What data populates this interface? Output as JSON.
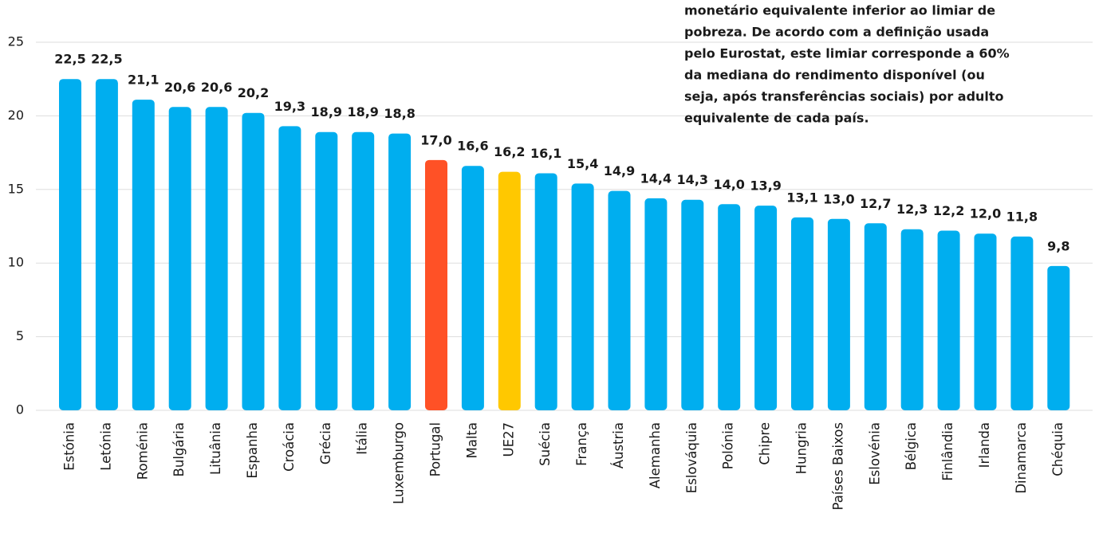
{
  "chart_data": {
    "type": "bar",
    "annotation": [
      "monetário equivalente inferior ao limiar de",
      "pobreza. De acordo com a definição usada",
      "pelo Eurostat, este limiar corresponde a 60%",
      "da mediana do rendimento disponível (ou",
      "seja, após transferências sociais) por adulto",
      "equivalente de cada país."
    ],
    "categories": [
      "Estónia",
      "Letónia",
      "Roménia",
      "Bulgária",
      "Lituânia",
      "Espanha",
      "Croácia",
      "Grécia",
      "Itália",
      "Luxemburgo",
      "Portugal",
      "Malta",
      "UE27",
      "Suécia",
      "França",
      "Áustria",
      "Alemanha",
      "Eslováquia",
      "Polónia",
      "Chipre",
      "Hungria",
      "Países Baixos",
      "Eslovénia",
      "Bélgica",
      "Finlândia",
      "Irlanda",
      "Dinamarca",
      "Chéquia"
    ],
    "values": [
      22.5,
      22.5,
      21.1,
      20.6,
      20.6,
      20.2,
      19.3,
      18.9,
      18.9,
      18.8,
      17.0,
      16.6,
      16.2,
      16.1,
      15.4,
      14.9,
      14.4,
      14.3,
      14.0,
      13.9,
      13.1,
      13.0,
      12.7,
      12.3,
      12.2,
      12.0,
      11.8,
      9.8
    ],
    "value_labels": [
      "22,5",
      "22,5",
      "21,1",
      "20,6",
      "20,6",
      "20,2",
      "19,3",
      "18,9",
      "18,9",
      "18,8",
      "17,0",
      "16,6",
      "16,2",
      "16,1",
      "15,4",
      "14,9",
      "14,4",
      "14,3",
      "14,0",
      "13,9",
      "13,1",
      "13,0",
      "12,7",
      "12,3",
      "12,2",
      "12,0",
      "11,8",
      "9,8"
    ],
    "colors": [
      "#00aeef",
      "#00aeef",
      "#00aeef",
      "#00aeef",
      "#00aeef",
      "#00aeef",
      "#00aeef",
      "#00aeef",
      "#00aeef",
      "#00aeef",
      "#ff5126",
      "#00aeef",
      "#ffc800",
      "#00aeef",
      "#00aeef",
      "#00aeef",
      "#00aeef",
      "#00aeef",
      "#00aeef",
      "#00aeef",
      "#00aeef",
      "#00aeef",
      "#00aeef",
      "#00aeef",
      "#00aeef",
      "#00aeef",
      "#00aeef",
      "#00aeef"
    ],
    "ylim": [
      0,
      25
    ],
    "yticks": [
      0,
      5,
      10,
      15,
      20,
      25
    ],
    "grid": true
  }
}
